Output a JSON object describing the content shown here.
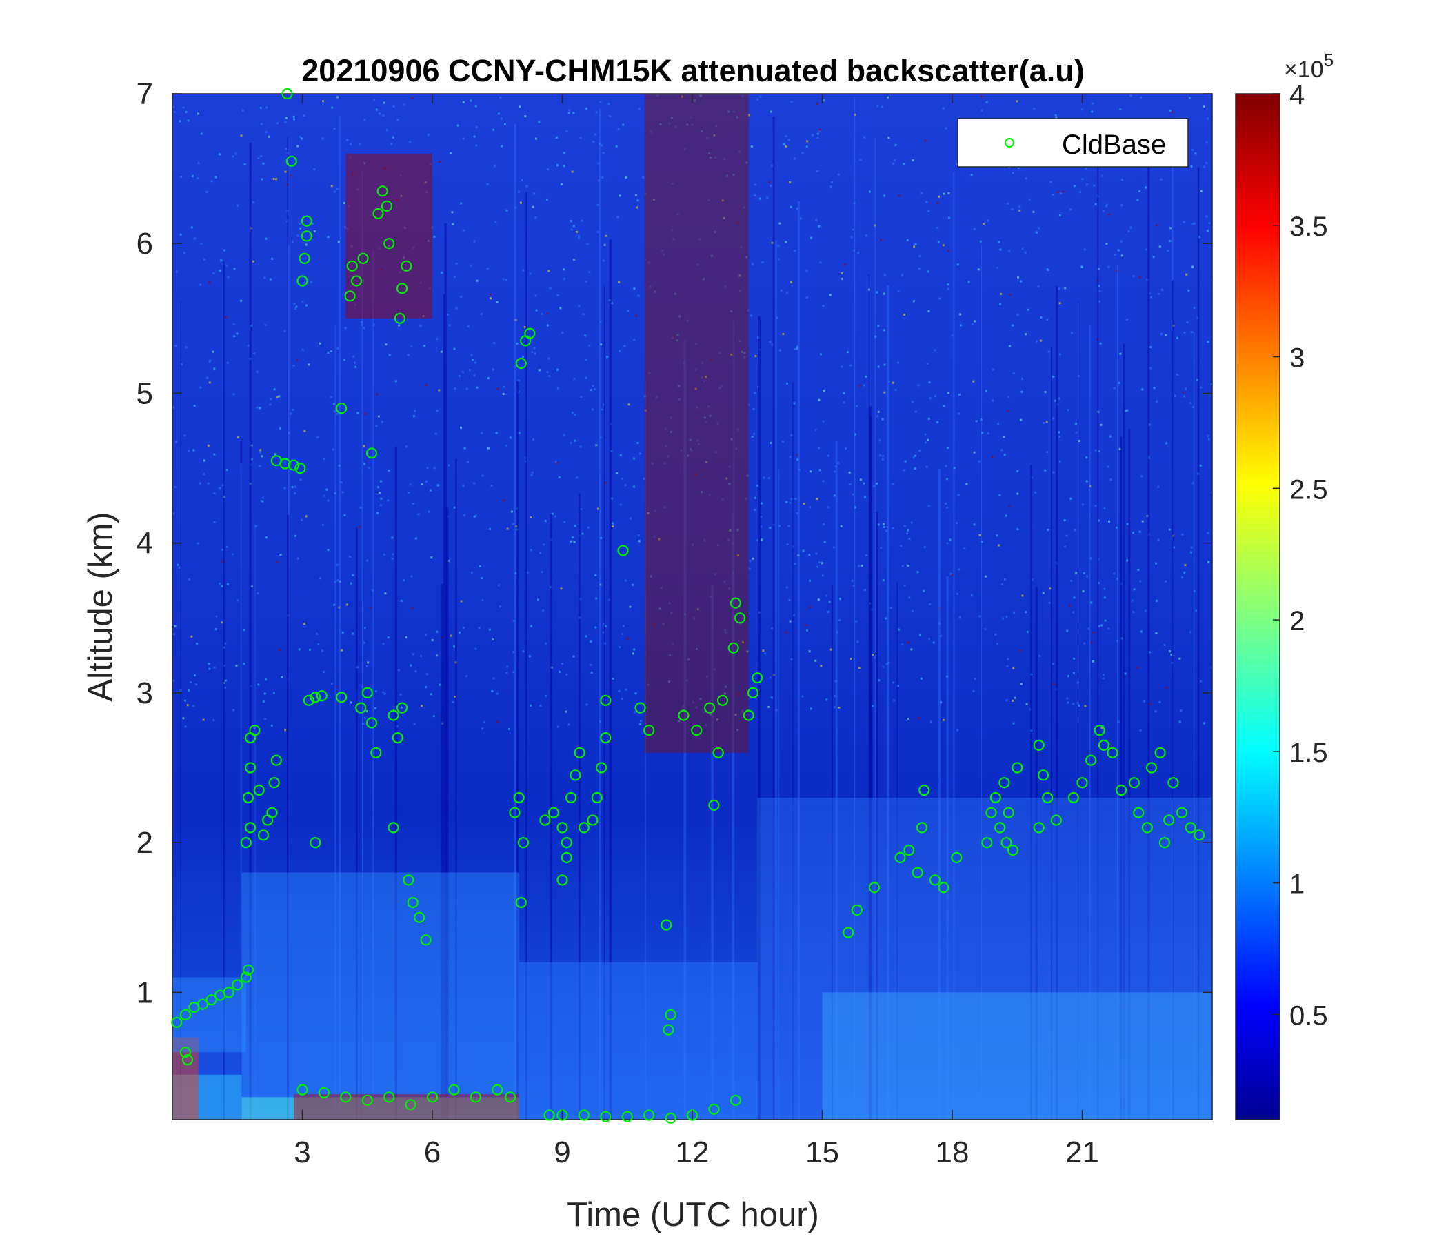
{
  "chart_data": {
    "type": "heatmap",
    "title": "20210906 CCNY-CHM15K attenuated backscatter(a.u)",
    "xlabel": "Time (UTC hour)",
    "ylabel": "Altitude (km)",
    "xlim": [
      0,
      24
    ],
    "ylim": [
      0.15,
      7
    ],
    "xticks": [
      3,
      6,
      9,
      12,
      15,
      18,
      21
    ],
    "yticks": [
      1,
      2,
      3,
      4,
      5,
      6,
      7
    ],
    "colormap": "jet",
    "colorbar": {
      "range": [
        0.1,
        4
      ],
      "ticks": [
        0.5,
        1,
        1.5,
        2,
        2.5,
        3,
        3.5,
        4
      ],
      "multiplier": "×10",
      "exponent": "5"
    },
    "legend": {
      "position": "top-right",
      "entries": [
        "CldBase"
      ]
    },
    "marker_color": "#00ee00",
    "series": [
      {
        "name": "CldBase",
        "kind": "scatter",
        "points": [
          [
            0.1,
            0.8
          ],
          [
            0.3,
            0.85
          ],
          [
            0.5,
            0.9
          ],
          [
            0.7,
            0.92
          ],
          [
            0.9,
            0.95
          ],
          [
            1.1,
            0.98
          ],
          [
            1.3,
            1.0
          ],
          [
            1.5,
            1.05
          ],
          [
            1.7,
            1.1
          ],
          [
            1.75,
            1.15
          ],
          [
            0.3,
            0.6
          ],
          [
            0.35,
            0.55
          ],
          [
            1.7,
            2.0
          ],
          [
            1.8,
            2.1
          ],
          [
            1.75,
            2.3
          ],
          [
            1.8,
            2.5
          ],
          [
            1.8,
            2.7
          ],
          [
            1.9,
            2.75
          ],
          [
            2.0,
            2.35
          ],
          [
            2.1,
            2.05
          ],
          [
            2.2,
            2.15
          ],
          [
            2.3,
            2.2
          ],
          [
            2.35,
            2.4
          ],
          [
            2.4,
            2.55
          ],
          [
            2.4,
            4.55
          ],
          [
            2.6,
            4.53
          ],
          [
            2.8,
            4.52
          ],
          [
            2.95,
            4.5
          ],
          [
            2.65,
            7.0
          ],
          [
            2.75,
            6.55
          ],
          [
            3.0,
            5.75
          ],
          [
            3.05,
            5.9
          ],
          [
            3.1,
            6.05
          ],
          [
            3.1,
            6.15
          ],
          [
            3.15,
            2.95
          ],
          [
            3.3,
            2.97
          ],
          [
            3.45,
            2.98
          ],
          [
            3.3,
            2.0
          ],
          [
            3.9,
            4.9
          ],
          [
            3.9,
            2.97
          ],
          [
            4.1,
            5.65
          ],
          [
            4.15,
            5.85
          ],
          [
            4.25,
            5.75
          ],
          [
            4.4,
            5.9
          ],
          [
            4.35,
            2.9
          ],
          [
            4.5,
            3.0
          ],
          [
            4.6,
            2.8
          ],
          [
            4.7,
            2.6
          ],
          [
            4.6,
            4.6
          ],
          [
            4.75,
            6.2
          ],
          [
            4.85,
            6.35
          ],
          [
            4.95,
            6.25
          ],
          [
            5.0,
            6.0
          ],
          [
            5.1,
            2.85
          ],
          [
            5.2,
            2.7
          ],
          [
            5.3,
            2.9
          ],
          [
            5.1,
            2.1
          ],
          [
            5.25,
            5.5
          ],
          [
            5.3,
            5.7
          ],
          [
            5.4,
            5.85
          ],
          [
            5.45,
            1.75
          ],
          [
            5.55,
            1.6
          ],
          [
            5.7,
            1.5
          ],
          [
            5.85,
            1.35
          ],
          [
            3.0,
            0.35
          ],
          [
            3.5,
            0.33
          ],
          [
            4.0,
            0.3
          ],
          [
            4.5,
            0.28
          ],
          [
            5.0,
            0.3
          ],
          [
            5.5,
            0.25
          ],
          [
            6.0,
            0.3
          ],
          [
            6.5,
            0.35
          ],
          [
            7.0,
            0.3
          ],
          [
            7.5,
            0.35
          ],
          [
            7.8,
            0.3
          ],
          [
            7.9,
            2.2
          ],
          [
            8.0,
            2.3
          ],
          [
            8.1,
            2.0
          ],
          [
            8.05,
            1.6
          ],
          [
            8.05,
            5.2
          ],
          [
            8.15,
            5.35
          ],
          [
            8.25,
            5.4
          ],
          [
            8.7,
            0.18
          ],
          [
            9.0,
            0.18
          ],
          [
            9.5,
            0.18
          ],
          [
            10.0,
            0.17
          ],
          [
            10.5,
            0.17
          ],
          [
            11.0,
            0.18
          ],
          [
            11.5,
            0.16
          ],
          [
            12.0,
            0.18
          ],
          [
            12.5,
            0.22
          ],
          [
            13.0,
            0.28
          ],
          [
            8.6,
            2.15
          ],
          [
            8.8,
            2.2
          ],
          [
            9.0,
            2.1
          ],
          [
            9.1,
            2.0
          ],
          [
            9.2,
            2.3
          ],
          [
            9.3,
            2.45
          ],
          [
            9.4,
            2.6
          ],
          [
            9.5,
            2.1
          ],
          [
            9.7,
            2.15
          ],
          [
            9.8,
            2.3
          ],
          [
            9.9,
            2.5
          ],
          [
            10.0,
            2.7
          ],
          [
            9.0,
            1.75
          ],
          [
            9.1,
            1.9
          ],
          [
            10.0,
            2.95
          ],
          [
            10.4,
            3.95
          ],
          [
            10.8,
            2.9
          ],
          [
            11.0,
            2.75
          ],
          [
            11.4,
            1.45
          ],
          [
            11.5,
            0.85
          ],
          [
            11.45,
            0.75
          ],
          [
            11.8,
            2.85
          ],
          [
            12.1,
            2.75
          ],
          [
            12.4,
            2.9
          ],
          [
            12.7,
            2.95
          ],
          [
            12.6,
            2.6
          ],
          [
            12.5,
            2.25
          ],
          [
            13.0,
            3.6
          ],
          [
            13.1,
            3.5
          ],
          [
            12.95,
            3.3
          ],
          [
            13.3,
            2.85
          ],
          [
            13.4,
            3.0
          ],
          [
            13.5,
            3.1
          ],
          [
            15.6,
            1.4
          ],
          [
            15.8,
            1.55
          ],
          [
            16.2,
            1.7
          ],
          [
            16.8,
            1.9
          ],
          [
            17.0,
            1.95
          ],
          [
            17.2,
            1.8
          ],
          [
            17.3,
            2.1
          ],
          [
            17.35,
            2.35
          ],
          [
            17.6,
            1.75
          ],
          [
            17.8,
            1.7
          ],
          [
            18.1,
            1.9
          ],
          [
            18.8,
            2.0
          ],
          [
            18.9,
            2.2
          ],
          [
            19.0,
            2.3
          ],
          [
            19.1,
            2.1
          ],
          [
            19.2,
            2.4
          ],
          [
            19.25,
            2.0
          ],
          [
            19.3,
            2.2
          ],
          [
            19.5,
            2.5
          ],
          [
            19.4,
            1.95
          ],
          [
            20.0,
            2.65
          ],
          [
            20.1,
            2.45
          ],
          [
            20.0,
            2.1
          ],
          [
            20.2,
            2.3
          ],
          [
            20.4,
            2.15
          ],
          [
            20.8,
            2.3
          ],
          [
            21.0,
            2.4
          ],
          [
            21.2,
            2.55
          ],
          [
            21.4,
            2.75
          ],
          [
            21.5,
            2.65
          ],
          [
            21.7,
            2.6
          ],
          [
            21.9,
            2.35
          ],
          [
            22.2,
            2.4
          ],
          [
            22.3,
            2.2
          ],
          [
            22.5,
            2.1
          ],
          [
            22.6,
            2.5
          ],
          [
            22.8,
            2.6
          ],
          [
            23.0,
            2.15
          ],
          [
            23.1,
            2.4
          ],
          [
            23.3,
            2.2
          ],
          [
            23.5,
            2.1
          ],
          [
            23.7,
            2.05
          ],
          [
            22.9,
            2.0
          ]
        ]
      }
    ]
  }
}
